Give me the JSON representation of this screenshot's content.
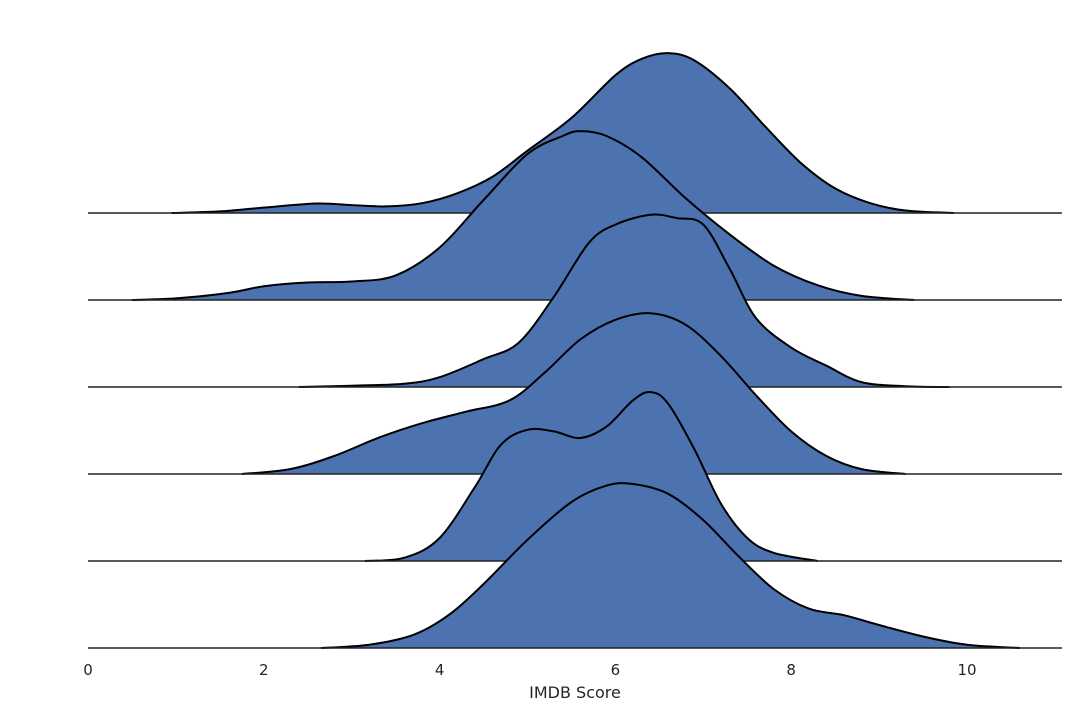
{
  "chart_data": {
    "type": "ridgeline",
    "xlabel": "IMDB Score",
    "xlim": [
      0,
      11.1
    ],
    "xticks": [
      0,
      2,
      4,
      6,
      8,
      10
    ],
    "fill_color": "#4c72b0",
    "line_color": "#000000",
    "series": [
      {
        "x": [
          0.95,
          1.5,
          2.0,
          2.6,
          3.0,
          3.4,
          3.8,
          4.2,
          4.6,
          5.0,
          5.5,
          6.0,
          6.3,
          6.6,
          6.9,
          7.3,
          7.7,
          8.1,
          8.5,
          8.9,
          9.3,
          9.85
        ],
        "density": [
          0.0,
          0.01,
          0.033,
          0.058,
          0.048,
          0.04,
          0.06,
          0.12,
          0.22,
          0.38,
          0.58,
          0.84,
          0.94,
          0.975,
          0.93,
          0.76,
          0.53,
          0.31,
          0.15,
          0.06,
          0.015,
          0.0
        ]
      },
      {
        "x": [
          0.5,
          1.0,
          1.6,
          2.0,
          2.5,
          3.0,
          3.5,
          4.0,
          4.5,
          5.0,
          5.4,
          5.6,
          5.9,
          6.3,
          6.8,
          7.3,
          7.8,
          8.3,
          8.8,
          9.4
        ],
        "density": [
          0.0,
          0.01,
          0.043,
          0.084,
          0.107,
          0.113,
          0.15,
          0.32,
          0.61,
          0.89,
          1.0,
          1.03,
          1.0,
          0.87,
          0.62,
          0.4,
          0.21,
          0.09,
          0.025,
          0.0
        ]
      },
      {
        "x": [
          2.4,
          3.0,
          3.6,
          4.0,
          4.5,
          4.9,
          5.3,
          5.7,
          6.0,
          6.4,
          6.7,
          7.0,
          7.3,
          7.6,
          8.0,
          8.4,
          8.8,
          9.3,
          9.8
        ],
        "density": [
          0.0,
          0.008,
          0.02,
          0.06,
          0.17,
          0.27,
          0.55,
          0.88,
          0.99,
          1.05,
          1.03,
          0.99,
          0.72,
          0.42,
          0.24,
          0.13,
          0.03,
          0.005,
          0.0
        ]
      },
      {
        "x": [
          1.75,
          2.3,
          2.8,
          3.3,
          3.8,
          4.3,
          4.8,
          5.2,
          5.6,
          6.0,
          6.4,
          6.8,
          7.2,
          7.6,
          8.0,
          8.4,
          8.8,
          9.3
        ],
        "density": [
          0.0,
          0.03,
          0.11,
          0.22,
          0.31,
          0.38,
          0.45,
          0.62,
          0.82,
          0.94,
          0.98,
          0.91,
          0.72,
          0.48,
          0.26,
          0.11,
          0.03,
          0.0
        ]
      },
      {
        "x": [
          3.15,
          3.6,
          4.0,
          4.4,
          4.7,
          5.0,
          5.3,
          5.6,
          5.9,
          6.2,
          6.4,
          6.6,
          6.9,
          7.2,
          7.5,
          7.8,
          8.3
        ],
        "density": [
          0.0,
          0.02,
          0.14,
          0.45,
          0.71,
          0.8,
          0.79,
          0.75,
          0.82,
          0.98,
          1.03,
          0.96,
          0.68,
          0.35,
          0.14,
          0.05,
          0.0
        ]
      },
      {
        "x": [
          2.65,
          3.2,
          3.7,
          4.1,
          4.5,
          5.0,
          5.5,
          5.9,
          6.2,
          6.6,
          7.0,
          7.4,
          7.8,
          8.2,
          8.6,
          9.0,
          9.5,
          10.0,
          10.6
        ],
        "density": [
          0.0,
          0.02,
          0.08,
          0.2,
          0.39,
          0.66,
          0.89,
          0.99,
          1.0,
          0.94,
          0.78,
          0.56,
          0.36,
          0.24,
          0.2,
          0.14,
          0.07,
          0.02,
          0.0
        ]
      }
    ]
  }
}
